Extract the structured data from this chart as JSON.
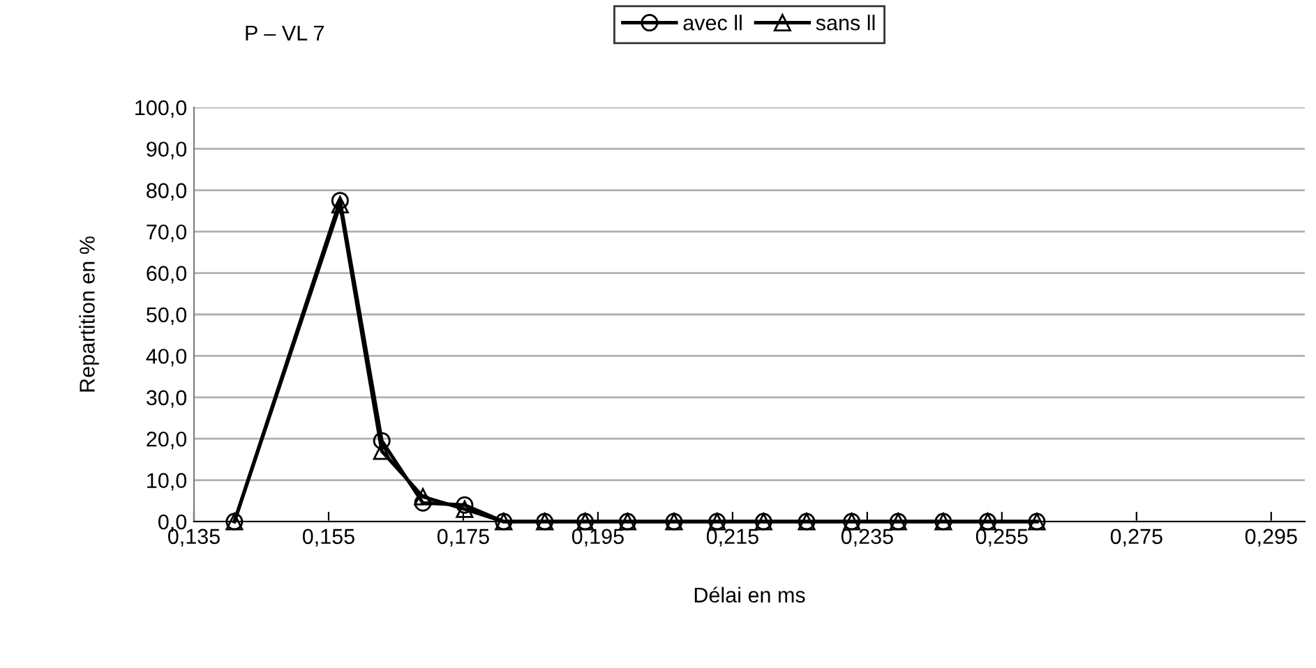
{
  "chart_data": {
    "type": "line",
    "title": "P – VL 7",
    "xlabel": "Délai en ms",
    "ylabel": "Repartition en %",
    "x": [
      0.141,
      0.1567,
      0.1629,
      0.169,
      0.1752,
      0.181,
      0.1871,
      0.1931,
      0.1994,
      0.2063,
      0.2127,
      0.2196,
      0.226,
      0.2327,
      0.2396,
      0.2463,
      0.2529,
      0.2602
    ],
    "series": [
      {
        "name": "avec ll",
        "color": "#000000",
        "marker": "circle",
        "values": [
          0,
          77.5,
          19.5,
          4.5,
          4,
          0,
          0,
          0,
          0,
          0,
          0,
          0,
          0,
          0,
          0,
          0,
          0,
          0
        ]
      },
      {
        "name": "sans ll",
        "color": "#000000",
        "marker": "triangle",
        "values": [
          0,
          76.5,
          17,
          6,
          3,
          0,
          0,
          0,
          0,
          0,
          0,
          0,
          0,
          0,
          0,
          0,
          0,
          0
        ]
      }
    ],
    "xlim": [
      0.135,
      0.3
    ],
    "ylim": [
      0,
      100
    ],
    "xticks": [
      {
        "value": 0.135,
        "label": "0,135"
      },
      {
        "value": 0.155,
        "label": "0,155"
      },
      {
        "value": 0.175,
        "label": "0,175"
      },
      {
        "value": 0.195,
        "label": "0,195"
      },
      {
        "value": 0.215,
        "label": "0,215"
      },
      {
        "value": 0.235,
        "label": "0,235"
      },
      {
        "value": 0.255,
        "label": "0,255"
      },
      {
        "value": 0.275,
        "label": "0,275"
      },
      {
        "value": 0.295,
        "label": "0,295"
      }
    ],
    "yticks": [
      {
        "value": 0,
        "label": "0,0"
      },
      {
        "value": 10,
        "label": "10,0"
      },
      {
        "value": 20,
        "label": "20,0"
      },
      {
        "value": 30,
        "label": "30,0"
      },
      {
        "value": 40,
        "label": "40,0"
      },
      {
        "value": 50,
        "label": "50,0"
      },
      {
        "value": 60,
        "label": "60,0"
      },
      {
        "value": 70,
        "label": "70,0"
      },
      {
        "value": 80,
        "label": "80,0"
      },
      {
        "value": 90,
        "label": "90,0"
      },
      {
        "value": 100,
        "label": "100,0"
      }
    ],
    "grid": "y",
    "legend": "top",
    "line_style": "solid"
  }
}
